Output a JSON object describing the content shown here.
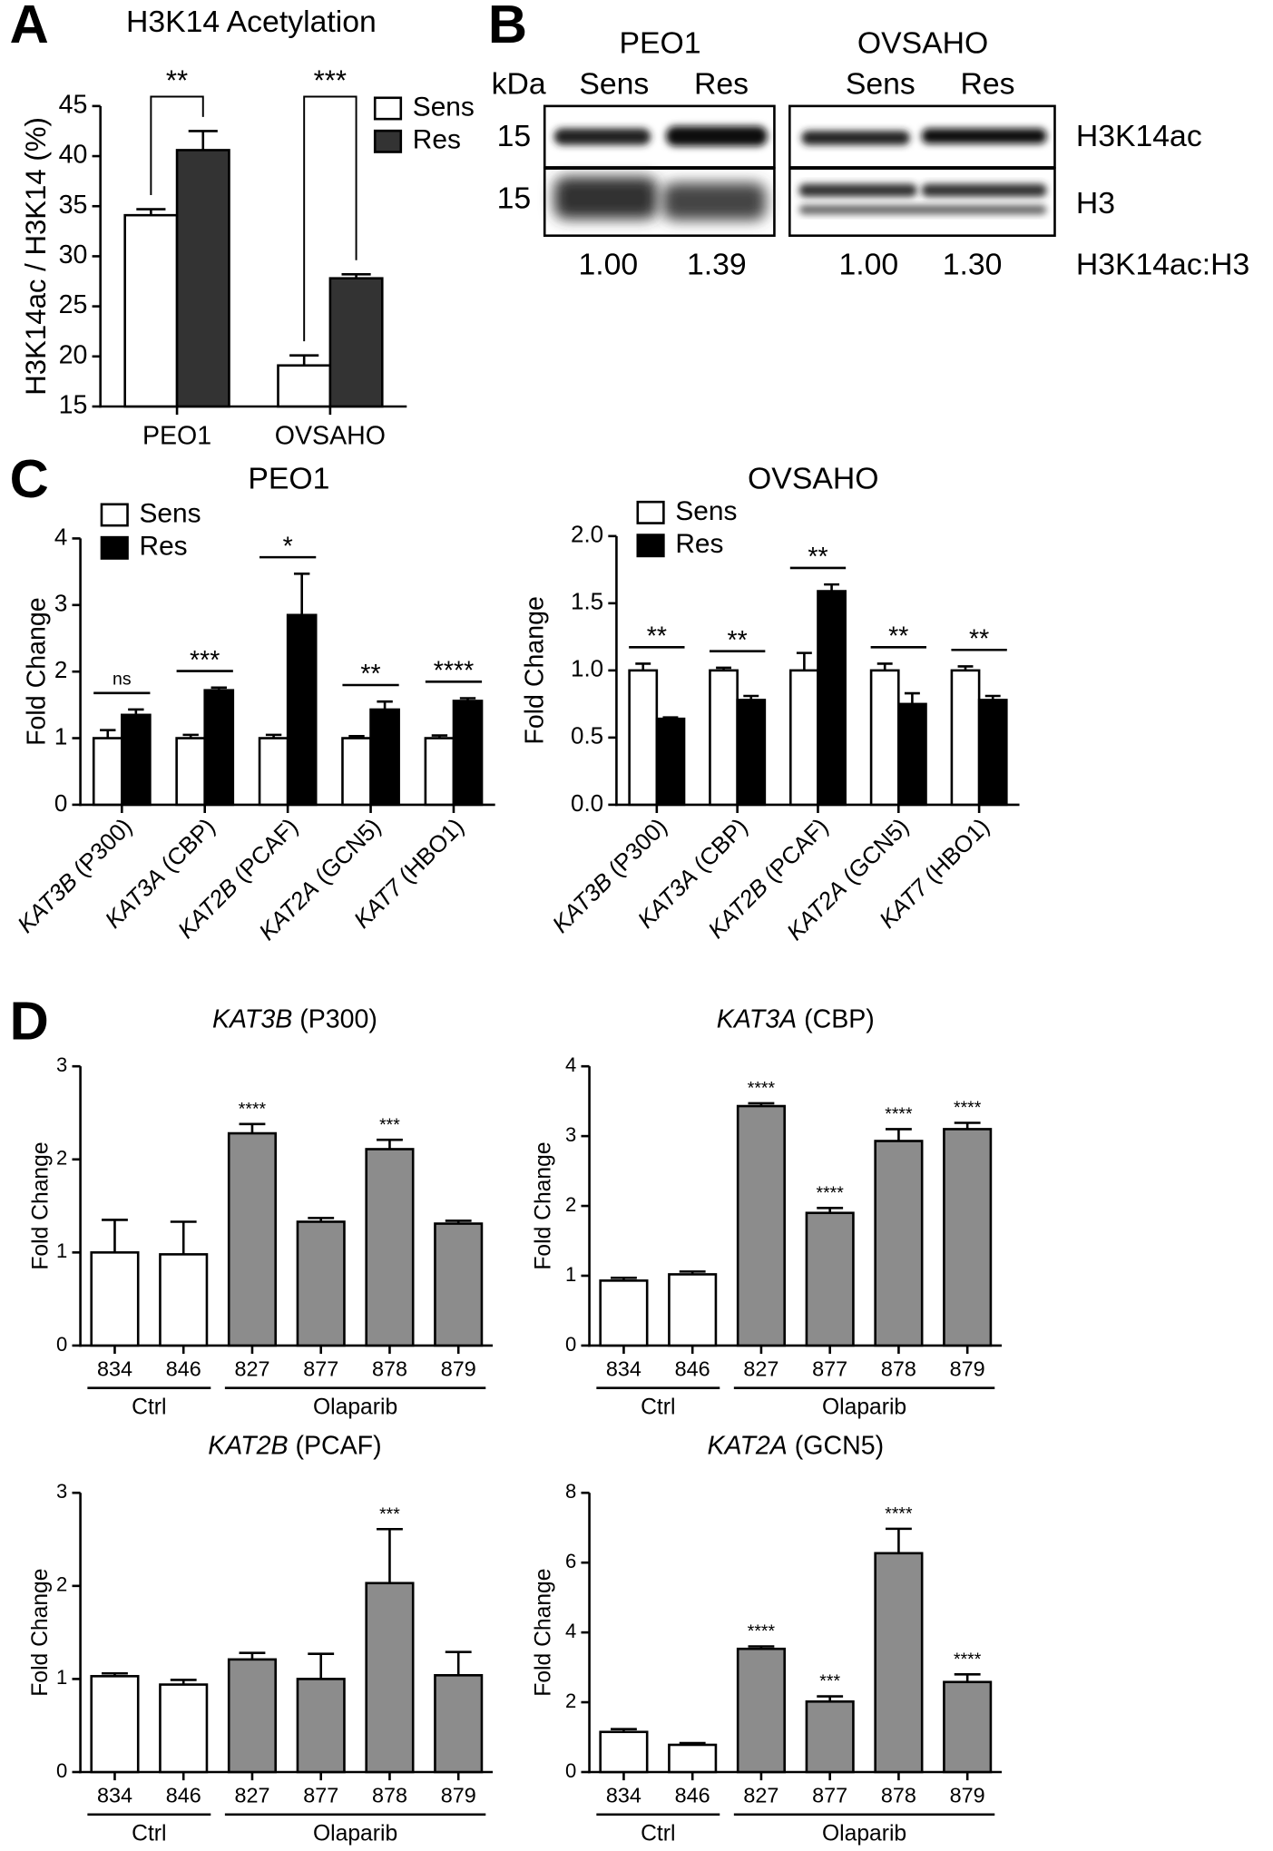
{
  "panel_labels": [
    "A",
    "B",
    "C",
    "D"
  ],
  "blot": {
    "cell_lines": [
      "PEO1",
      "OVSAHO"
    ],
    "unit": "kDa",
    "lanes": [
      "Sens",
      "Res",
      "Sens",
      "Res"
    ],
    "markers": [
      "15",
      "15"
    ],
    "bands": [
      "H3K14ac",
      "H3"
    ],
    "ratio_label": "H3K14ac:H3",
    "ratios": [
      "1.00",
      "1.39",
      "1.00",
      "1.30"
    ]
  },
  "chart_data": [
    {
      "type": "bar",
      "title": "H3K14 Acetylation",
      "ylabel": "H3K14ac / H3K14 (%)",
      "categories": [
        "PEO1",
        "OVSAHO"
      ],
      "series": [
        {
          "name": "Sens",
          "color": "#ffffff",
          "values": [
            34.1,
            19.1
          ],
          "errors": [
            0.6,
            1.0
          ]
        },
        {
          "name": "Res",
          "color": "#333333",
          "values": [
            40.6,
            27.8
          ],
          "errors": [
            1.9,
            0.4
          ]
        }
      ],
      "annotations": [
        "**",
        "***"
      ],
      "ylim": [
        15,
        45
      ],
      "yticks": [
        15,
        20,
        25,
        30,
        35,
        40,
        45
      ],
      "legend": "upper right"
    },
    {
      "type": "bar",
      "title": "PEO1",
      "ylabel": "Fold Change",
      "categories": [
        "KAT3B (P300)",
        "KAT3A (CBP)",
        "KAT2B (PCAF)",
        "KAT2A (GCN5)",
        "KAT7 (HBO1)"
      ],
      "series": [
        {
          "name": "Sens",
          "color": "#ffffff",
          "values": [
            1.0,
            1.0,
            1.0,
            1.0,
            1.0
          ],
          "errors": [
            0.12,
            0.05,
            0.05,
            0.03,
            0.04
          ]
        },
        {
          "name": "Res",
          "color": "#000000",
          "values": [
            1.35,
            1.72,
            2.85,
            1.43,
            1.56
          ],
          "errors": [
            0.08,
            0.04,
            0.62,
            0.12,
            0.04
          ]
        }
      ],
      "annotations": [
        "ns",
        "***",
        "*",
        "**",
        "****"
      ],
      "ylim": [
        0,
        4
      ],
      "yticks": [
        0,
        1,
        2,
        3,
        4
      ],
      "legend": "upper left"
    },
    {
      "type": "bar",
      "title": "OVSAHO",
      "ylabel": "Fold Change",
      "categories": [
        "KAT3B (P300)",
        "KAT3A (CBP)",
        "KAT2B (PCAF)",
        "KAT2A (GCN5)",
        "KAT7 (HBO1)"
      ],
      "series": [
        {
          "name": "Sens",
          "color": "#ffffff",
          "values": [
            1.0,
            1.0,
            1.0,
            1.0,
            1.0
          ],
          "errors": [
            0.05,
            0.02,
            0.13,
            0.05,
            0.03
          ]
        },
        {
          "name": "Res",
          "color": "#000000",
          "values": [
            0.64,
            0.78,
            1.59,
            0.75,
            0.78
          ],
          "errors": [
            0.01,
            0.03,
            0.05,
            0.08,
            0.03
          ]
        }
      ],
      "annotations": [
        "**",
        "**",
        "**",
        "**",
        "**"
      ],
      "ylim": [
        0,
        2
      ],
      "yticks": [
        {
          "value": 0,
          "label": "0.0"
        },
        {
          "value": 0.5,
          "label": "0.5"
        },
        {
          "value": 1,
          "label": "1.0"
        },
        {
          "value": 1.5,
          "label": "1.5"
        },
        {
          "value": 2,
          "label": "2.0"
        }
      ],
      "legend": "upper left"
    },
    {
      "type": "bar",
      "title": "KAT3B (P300)",
      "ylabel": "Fold Change",
      "categories": [
        "834",
        "846",
        "827",
        "877",
        "878",
        "879"
      ],
      "group_labels": [
        "Ctrl",
        "Olaparib"
      ],
      "series": [
        {
          "colors": [
            "#ffffff",
            "#ffffff",
            "#8c8c8c",
            "#8c8c8c",
            "#8c8c8c",
            "#8c8c8c"
          ],
          "values": [
            1.0,
            0.98,
            2.28,
            1.33,
            2.11,
            1.31
          ],
          "errors": [
            0.35,
            0.35,
            0.1,
            0.04,
            0.1,
            0.03
          ]
        }
      ],
      "annotations": [
        null,
        null,
        "****",
        null,
        "***",
        null
      ],
      "ylim": [
        0,
        3
      ],
      "yticks": [
        0,
        1,
        2,
        3
      ]
    },
    {
      "type": "bar",
      "title": "KAT3A (CBP)",
      "ylabel": "Fold Change",
      "categories": [
        "834",
        "846",
        "827",
        "877",
        "878",
        "879"
      ],
      "group_labels": [
        "Ctrl",
        "Olaparib"
      ],
      "series": [
        {
          "colors": [
            "#ffffff",
            "#ffffff",
            "#8c8c8c",
            "#8c8c8c",
            "#8c8c8c",
            "#8c8c8c"
          ],
          "values": [
            0.93,
            1.02,
            3.43,
            1.9,
            2.93,
            3.1
          ],
          "errors": [
            0.04,
            0.04,
            0.04,
            0.07,
            0.17,
            0.09
          ]
        }
      ],
      "annotations": [
        null,
        null,
        "****",
        "****",
        "****",
        "****"
      ],
      "ylim": [
        0,
        4
      ],
      "yticks": [
        0,
        1,
        2,
        3,
        4
      ]
    },
    {
      "type": "bar",
      "title": "KAT2B (PCAF)",
      "ylabel": "Fold Change",
      "categories": [
        "834",
        "846",
        "827",
        "877",
        "878",
        "879"
      ],
      "group_labels": [
        "Ctrl",
        "Olaparib"
      ],
      "series": [
        {
          "colors": [
            "#ffffff",
            "#ffffff",
            "#8c8c8c",
            "#8c8c8c",
            "#8c8c8c",
            "#8c8c8c"
          ],
          "values": [
            1.03,
            0.94,
            1.21,
            1.0,
            2.03,
            1.04
          ],
          "errors": [
            0.03,
            0.05,
            0.07,
            0.27,
            0.58,
            0.25
          ]
        }
      ],
      "annotations": [
        null,
        null,
        null,
        null,
        "***",
        null
      ],
      "ylim": [
        0,
        3
      ],
      "yticks": [
        0,
        1,
        2,
        3
      ]
    },
    {
      "type": "bar",
      "title": "KAT2A (GCN5)",
      "ylabel": "Fold Change",
      "categories": [
        "834",
        "846",
        "827",
        "877",
        "878",
        "879"
      ],
      "group_labels": [
        "Ctrl",
        "Olaparib"
      ],
      "series": [
        {
          "colors": [
            "#ffffff",
            "#ffffff",
            "#8c8c8c",
            "#8c8c8c",
            "#8c8c8c",
            "#8c8c8c"
          ],
          "values": [
            1.15,
            0.78,
            3.53,
            2.02,
            6.27,
            2.58
          ],
          "errors": [
            0.08,
            0.05,
            0.07,
            0.15,
            0.7,
            0.22
          ]
        }
      ],
      "annotations": [
        null,
        null,
        "****",
        "***",
        "****",
        "****"
      ],
      "ylim": [
        0,
        8
      ],
      "yticks": [
        0,
        2,
        4,
        6,
        8
      ]
    }
  ]
}
